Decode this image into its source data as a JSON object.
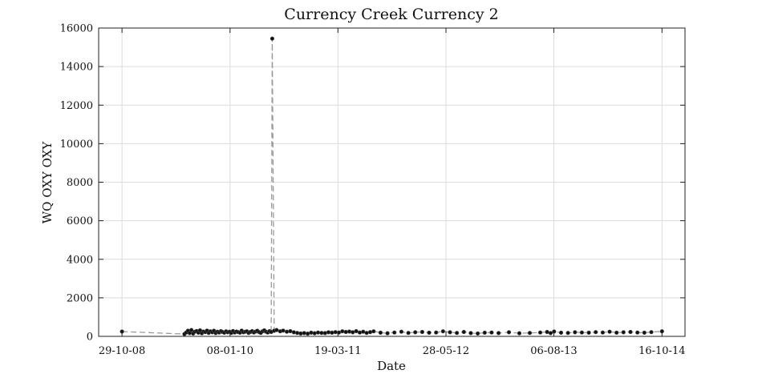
{
  "chart_data": {
    "type": "scatter",
    "title": "Currency Creek Currency 2",
    "xlabel": "Date",
    "ylabel": "WQ OXY OXY",
    "xlim": [
      "2008-07-27",
      "2015-01-17"
    ],
    "ylim": [
      0,
      16000
    ],
    "x_ticks": [
      "2008-10-29",
      "2010-01-08",
      "2011-03-19",
      "2012-05-28",
      "2013-08-06",
      "2014-10-16"
    ],
    "x_tick_labels": [
      "29-10-08",
      "08-01-10",
      "19-03-11",
      "28-05-12",
      "06-08-13",
      "16-10-14"
    ],
    "y_ticks": [
      0,
      2000,
      4000,
      6000,
      8000,
      10000,
      12000,
      14000,
      16000
    ],
    "y_tick_labels": [
      "0",
      "2000",
      "4000",
      "6000",
      "8000",
      "10000",
      "12000",
      "14000",
      "16000"
    ],
    "grid": true,
    "legend": "none",
    "line_style": "dashed",
    "colors": {
      "line": "#9a9a9a",
      "marker": "#111111"
    },
    "series": [
      {
        "x": [
          "2008-10-29",
          "2009-07-08",
          "2009-07-15",
          "2009-07-22",
          "2009-07-29",
          "2009-08-05",
          "2009-08-12",
          "2009-08-19",
          "2009-08-26",
          "2009-09-02",
          "2009-09-09",
          "2009-09-16",
          "2009-09-23",
          "2009-09-30",
          "2009-10-07",
          "2009-10-14",
          "2009-10-21",
          "2009-10-28",
          "2009-11-04",
          "2009-11-11",
          "2009-11-18",
          "2009-11-25",
          "2009-12-02",
          "2009-12-09",
          "2009-12-16",
          "2009-12-23",
          "2009-12-30",
          "2010-01-06",
          "2010-01-13",
          "2010-01-20",
          "2010-01-27",
          "2010-02-03",
          "2010-02-10",
          "2010-02-17",
          "2010-02-24",
          "2010-03-03",
          "2010-03-10",
          "2010-03-17",
          "2010-03-24",
          "2010-03-31",
          "2010-04-07",
          "2010-04-14",
          "2010-04-21",
          "2010-04-28",
          "2010-05-05",
          "2010-05-12",
          "2010-05-19",
          "2010-05-26",
          "2010-06-02",
          "2010-06-09",
          "2010-06-16",
          "2010-06-23",
          "2010-06-27",
          "2010-07-05",
          "2010-07-15",
          "2010-07-29",
          "2010-08-10",
          "2010-08-25",
          "2010-09-08",
          "2010-09-22",
          "2010-10-06",
          "2010-10-20",
          "2010-11-03",
          "2010-11-17",
          "2010-12-01",
          "2010-12-15",
          "2010-12-29",
          "2011-01-12",
          "2011-01-26",
          "2011-02-09",
          "2011-02-23",
          "2011-03-09",
          "2011-03-23",
          "2011-04-06",
          "2011-04-20",
          "2011-05-04",
          "2011-05-18",
          "2011-06-01",
          "2011-06-15",
          "2011-06-29",
          "2011-07-13",
          "2011-07-27",
          "2011-08-10",
          "2011-09-07",
          "2011-10-05",
          "2011-11-02",
          "2011-11-30",
          "2011-12-28",
          "2012-01-25",
          "2012-02-22",
          "2012-03-21",
          "2012-04-18",
          "2012-05-16",
          "2012-06-13",
          "2012-07-11",
          "2012-08-08",
          "2012-09-05",
          "2012-10-03",
          "2012-10-31",
          "2012-11-28",
          "2012-12-26",
          "2013-02-06",
          "2013-03-20",
          "2013-05-01",
          "2013-06-12",
          "2013-07-10",
          "2013-07-24",
          "2013-08-07",
          "2013-09-04",
          "2013-10-02",
          "2013-10-30",
          "2013-11-27",
          "2013-12-25",
          "2014-01-22",
          "2014-02-19",
          "2014-03-19",
          "2014-04-16",
          "2014-05-14",
          "2014-06-11",
          "2014-07-09",
          "2014-08-06",
          "2014-09-03",
          "2014-10-16"
        ],
        "y": [
          250,
          120,
          200,
          290,
          170,
          330,
          150,
          240,
          280,
          190,
          310,
          160,
          250,
          220,
          300,
          180,
          260,
          210,
          290,
          170,
          240,
          200,
          270,
          230,
          190,
          260,
          210,
          240,
          180,
          280,
          200,
          250,
          220,
          190,
          300,
          210,
          240,
          260,
          180,
          230,
          270,
          200,
          250,
          290,
          220,
          180,
          260,
          310,
          240,
          200,
          270,
          230,
          15450,
          290,
          330,
          260,
          300,
          240,
          270,
          210,
          180,
          150,
          170,
          140,
          190,
          160,
          200,
          180,
          170,
          210,
          190,
          220,
          200,
          260,
          230,
          250,
          210,
          270,
          200,
          240,
          180,
          220,
          260,
          190,
          160,
          200,
          240,
          180,
          210,
          230,
          190,
          200,
          260,
          210,
          180,
          230,
          170,
          150,
          190,
          200,
          170,
          210,
          160,
          180,
          200,
          230,
          170,
          250,
          190,
          180,
          210,
          200,
          190,
          220,
          200,
          240,
          190,
          210,
          230,
          200,
          190,
          220,
          260
        ]
      }
    ]
  }
}
